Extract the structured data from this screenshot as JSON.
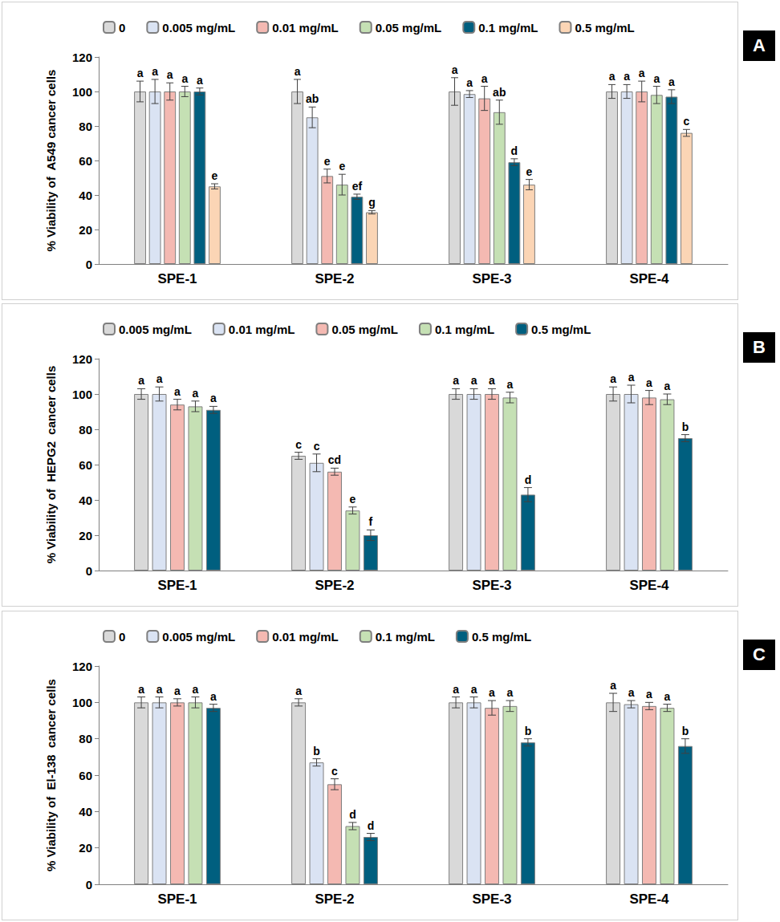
{
  "chart_data": [
    {
      "type": "bar",
      "title": "A",
      "ylabel": "% Viability of  A549 cancer cells",
      "categories": [
        "SPE-1",
        "SPE-2",
        "SPE-3",
        "SPE-4"
      ],
      "ylim": [
        0,
        120
      ],
      "yticks": [
        0,
        20,
        40,
        60,
        80,
        100,
        120
      ],
      "grid": false,
      "legend": "top",
      "series": [
        {
          "name": "0",
          "color": "#d9d9d9",
          "values": [
            100,
            100,
            100,
            100
          ],
          "errors": [
            6,
            7,
            8,
            4
          ],
          "letters": [
            "a",
            "a",
            "a",
            "a"
          ]
        },
        {
          "name": "0.005 mg/mL",
          "color": "#dae3f3",
          "values": [
            100,
            85,
            98.5,
            100
          ],
          "errors": [
            7,
            6,
            2,
            4
          ],
          "letters": [
            "a",
            "ab",
            "a",
            "a"
          ]
        },
        {
          "name": "0.01 mg/mL",
          "color": "#f4b9b2",
          "values": [
            100,
            51,
            96,
            100
          ],
          "errors": [
            5,
            4,
            7,
            6
          ],
          "letters": [
            "a",
            "e",
            "a",
            "a"
          ]
        },
        {
          "name": "0.05 mg/mL",
          "color": "#c5e0b4",
          "values": [
            100,
            46,
            88,
            98
          ],
          "errors": [
            3,
            6,
            7,
            5
          ],
          "letters": [
            "a",
            "e",
            "ab",
            "a"
          ]
        },
        {
          "name": "0.1 mg/mL",
          "color": "#005f7f",
          "values": [
            100,
            39,
            59,
            97
          ],
          "errors": [
            2,
            1.5,
            2,
            4
          ],
          "letters": [
            "a",
            "ef",
            "d",
            "a"
          ]
        },
        {
          "name": "0.5 mg/mL",
          "color": "#fbd5b5",
          "values": [
            45,
            30,
            46,
            76
          ],
          "errors": [
            1.5,
            1,
            3,
            2
          ],
          "letters": [
            "e",
            "g",
            "e",
            "c"
          ]
        }
      ]
    },
    {
      "type": "bar",
      "title": "B",
      "ylabel": "% Viability of  HEPG2  cancer cells",
      "categories": [
        "SPE-1",
        "SPE-2",
        "SPE-3",
        "SPE-4"
      ],
      "ylim": [
        0,
        120
      ],
      "yticks": [
        0,
        20,
        40,
        60,
        80,
        100,
        120
      ],
      "grid": false,
      "legend": "top",
      "series": [
        {
          "name": "0.005 mg/mL",
          "color": "#d9d9d9",
          "values": [
            100,
            65,
            100,
            100
          ],
          "errors": [
            3,
            2,
            3,
            4
          ],
          "letters": [
            "a",
            "c",
            "a",
            "a"
          ]
        },
        {
          "name": "0.01 mg/mL",
          "color": "#dae3f3",
          "values": [
            100,
            61,
            100,
            100
          ],
          "errors": [
            4,
            5,
            3,
            5
          ],
          "letters": [
            "a",
            "c",
            "a",
            "a"
          ]
        },
        {
          "name": "0.05 mg/mL",
          "color": "#f4b9b2",
          "values": [
            94,
            56,
            100,
            98
          ],
          "errors": [
            3,
            2,
            3,
            4
          ],
          "letters": [
            "a",
            "cd",
            "a",
            "a"
          ]
        },
        {
          "name": "0.1 mg/mL",
          "color": "#c5e0b4",
          "values": [
            93,
            34,
            98,
            97
          ],
          "errors": [
            3,
            2,
            3,
            3
          ],
          "letters": [
            "a",
            "e",
            "a",
            "a"
          ]
        },
        {
          "name": "0.5 mg/mL",
          "color": "#005f7f",
          "values": [
            91,
            20,
            43,
            75
          ],
          "errors": [
            2,
            3,
            4,
            2
          ],
          "letters": [
            "a",
            "f",
            "d",
            "b"
          ]
        }
      ]
    },
    {
      "type": "bar",
      "title": "C",
      "ylabel": "% Viability of  El-138  cancer cells",
      "categories": [
        "SPE-1",
        "SPE-2",
        "SPE-3",
        "SPE-4"
      ],
      "ylim": [
        0,
        120
      ],
      "yticks": [
        0,
        20,
        40,
        60,
        80,
        100,
        120
      ],
      "grid": false,
      "legend": "top",
      "series": [
        {
          "name": "0",
          "color": "#d9d9d9",
          "values": [
            100,
            100,
            100,
            100
          ],
          "errors": [
            3,
            2,
            3,
            5
          ],
          "letters": [
            "a",
            "a",
            "a",
            "a"
          ]
        },
        {
          "name": "0.005 mg/mL",
          "color": "#dae3f3",
          "values": [
            100,
            67,
            100,
            99
          ],
          "errors": [
            3,
            2,
            3,
            2
          ],
          "letters": [
            "a",
            "b",
            "a",
            "a"
          ]
        },
        {
          "name": "0.01 mg/mL",
          "color": "#f4b9b2",
          "values": [
            100,
            55,
            97,
            98
          ],
          "errors": [
            2,
            3,
            4,
            2
          ],
          "letters": [
            "a",
            "c",
            "a",
            "a"
          ]
        },
        {
          "name": "0.1 mg/mL",
          "color": "#c5e0b4",
          "values": [
            100,
            32,
            98,
            97
          ],
          "errors": [
            3,
            2,
            3,
            2
          ],
          "letters": [
            "a",
            "d",
            "a",
            "a"
          ]
        },
        {
          "name": "0.5 mg/mL",
          "color": "#005f7f",
          "values": [
            97,
            26,
            78,
            76
          ],
          "errors": [
            2,
            2,
            2,
            4
          ],
          "letters": [
            "a",
            "d",
            "b",
            "b"
          ]
        }
      ]
    }
  ]
}
